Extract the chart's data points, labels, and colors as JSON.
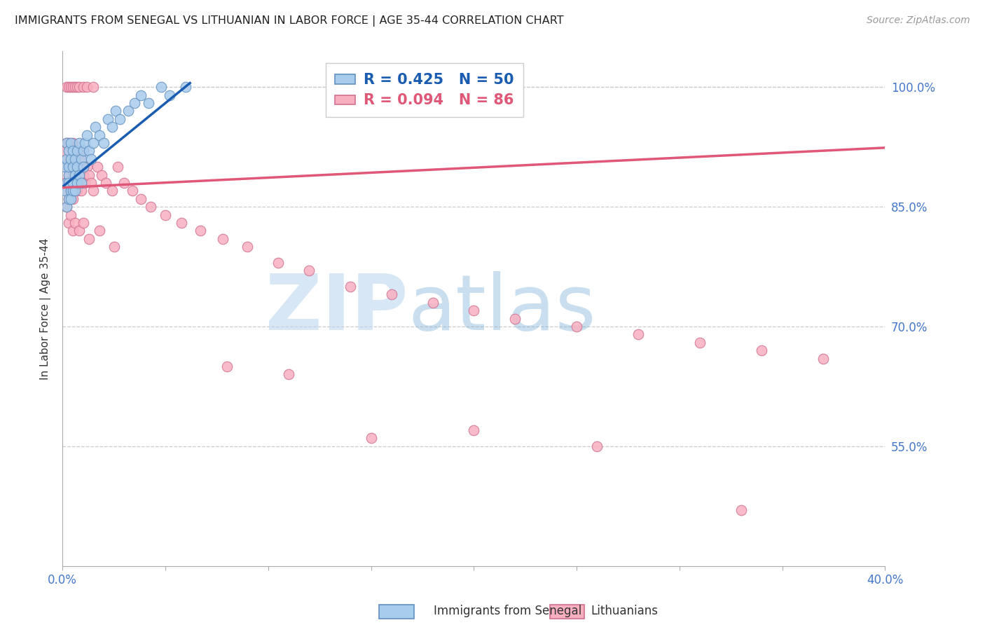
{
  "title": "IMMIGRANTS FROM SENEGAL VS LITHUANIAN IN LABOR FORCE | AGE 35-44 CORRELATION CHART",
  "source": "Source: ZipAtlas.com",
  "ylabel": "In Labor Force | Age 35-44",
  "xlim": [
    0.0,
    0.4
  ],
  "ylim": [
    0.4,
    1.045
  ],
  "ytick_vals": [
    0.55,
    0.7,
    0.85,
    1.0
  ],
  "xtick_vals": [
    0.0,
    0.05,
    0.1,
    0.15,
    0.2,
    0.25,
    0.3,
    0.35,
    0.4
  ],
  "xtick_labels_show": [
    "0.0%",
    "",
    "",
    "",
    "",
    "",
    "",
    "",
    "40.0%"
  ],
  "ytick_labels": [
    "55.0%",
    "70.0%",
    "85.0%",
    "100.0%"
  ],
  "senegal_color": "#a8ccec",
  "senegal_edge": "#6090c0",
  "lithuanian_color": "#f8b0c0",
  "lithuanian_edge": "#d07090",
  "senegal_trend_color": "#1a5cb0",
  "lithuanian_trend_color": "#e05878",
  "R_senegal": 0.425,
  "N_senegal": 50,
  "R_lithuanian": 0.094,
  "N_lithuanian": 86,
  "watermark_zip": "ZIP",
  "watermark_atlas": "atlas",
  "bottom_legend_sen": "Immigrants from Senegal",
  "bottom_legend_lit": "Lithuanians",
  "tick_color": "#4477cc",
  "grid_color": "#cccccc",
  "title_color": "#222222",
  "source_color": "#999999",
  "ylabel_color": "#333333",
  "legend_sen_text": "R = 0.425   N = 50",
  "legend_lit_text": "R = 0.094   N = 86",
  "senegal_x": [
    0.001,
    0.001,
    0.002,
    0.002,
    0.002,
    0.002,
    0.003,
    0.003,
    0.003,
    0.003,
    0.003,
    0.004,
    0.004,
    0.004,
    0.004,
    0.005,
    0.005,
    0.005,
    0.005,
    0.006,
    0.006,
    0.006,
    0.007,
    0.007,
    0.007,
    0.008,
    0.008,
    0.009,
    0.009,
    0.01,
    0.01,
    0.011,
    0.012,
    0.013,
    0.014,
    0.015,
    0.016,
    0.018,
    0.02,
    0.022,
    0.024,
    0.026,
    0.028,
    0.032,
    0.035,
    0.038,
    0.042,
    0.048,
    0.052,
    0.06
  ],
  "senegal_y": [
    0.87,
    0.9,
    0.91,
    0.85,
    0.93,
    0.88,
    0.86,
    0.92,
    0.89,
    0.9,
    0.88,
    0.87,
    0.91,
    0.86,
    0.93,
    0.88,
    0.87,
    0.9,
    0.92,
    0.89,
    0.91,
    0.87,
    0.9,
    0.88,
    0.92,
    0.89,
    0.93,
    0.91,
    0.88,
    0.92,
    0.9,
    0.93,
    0.94,
    0.92,
    0.91,
    0.93,
    0.95,
    0.94,
    0.93,
    0.96,
    0.95,
    0.97,
    0.96,
    0.97,
    0.98,
    0.99,
    0.98,
    1.0,
    0.99,
    1.0
  ],
  "lithuanian_x": [
    0.001,
    0.001,
    0.002,
    0.002,
    0.002,
    0.003,
    0.003,
    0.003,
    0.003,
    0.004,
    0.004,
    0.004,
    0.004,
    0.005,
    0.005,
    0.005,
    0.005,
    0.006,
    0.006,
    0.006,
    0.007,
    0.007,
    0.007,
    0.008,
    0.008,
    0.009,
    0.009,
    0.01,
    0.01,
    0.011,
    0.012,
    0.013,
    0.014,
    0.015,
    0.017,
    0.019,
    0.021,
    0.024,
    0.027,
    0.03,
    0.034,
    0.038,
    0.043,
    0.05,
    0.058,
    0.067,
    0.078,
    0.09,
    0.105,
    0.12,
    0.14,
    0.16,
    0.18,
    0.2,
    0.22,
    0.25,
    0.28,
    0.31,
    0.34,
    0.37,
    0.002,
    0.003,
    0.004,
    0.005,
    0.006,
    0.007,
    0.008,
    0.01,
    0.012,
    0.015,
    0.002,
    0.003,
    0.004,
    0.005,
    0.006,
    0.008,
    0.01,
    0.013,
    0.018,
    0.025,
    0.08,
    0.11,
    0.15,
    0.2,
    0.26,
    0.33
  ],
  "lithuanian_y": [
    0.88,
    0.92,
    0.9,
    0.87,
    0.93,
    0.89,
    0.91,
    0.86,
    0.93,
    0.88,
    0.91,
    0.87,
    0.9,
    0.89,
    0.92,
    0.86,
    0.93,
    0.88,
    0.91,
    0.89,
    0.87,
    0.92,
    0.9,
    0.88,
    0.91,
    0.87,
    0.9,
    0.89,
    0.92,
    0.88,
    0.9,
    0.89,
    0.88,
    0.87,
    0.9,
    0.89,
    0.88,
    0.87,
    0.9,
    0.88,
    0.87,
    0.86,
    0.85,
    0.84,
    0.83,
    0.82,
    0.81,
    0.8,
    0.78,
    0.77,
    0.75,
    0.74,
    0.73,
    0.72,
    0.71,
    0.7,
    0.69,
    0.68,
    0.67,
    0.66,
    1.0,
    1.0,
    1.0,
    1.0,
    1.0,
    1.0,
    1.0,
    1.0,
    1.0,
    1.0,
    0.85,
    0.83,
    0.84,
    0.82,
    0.83,
    0.82,
    0.83,
    0.81,
    0.82,
    0.8,
    0.65,
    0.64,
    0.56,
    0.57,
    0.55,
    0.47
  ]
}
